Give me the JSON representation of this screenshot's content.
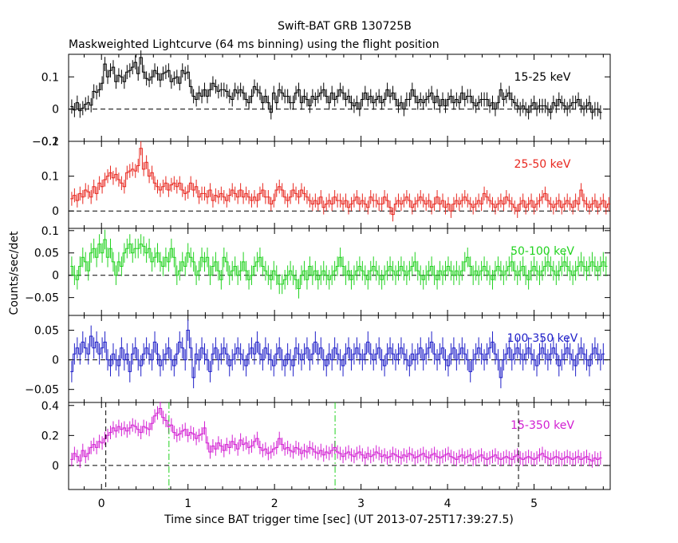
{
  "chart_data": {
    "type": "line",
    "title": "Swift-BAT GRB 130725B",
    "subtitle": "Maskweighted Lightcurve (64 ms binning) using the flight position",
    "xlabel": "Time since BAT trigger time [sec] (UT 2013-07-25T17:39:27.5)",
    "ylabel": "Counts/sec/det",
    "xlim": [
      -0.38,
      5.88
    ],
    "xticks": [
      "0",
      "1",
      "2",
      "3",
      "4",
      "5"
    ],
    "bin_width_sec": 0.064,
    "vertical_markers": [
      {
        "x": 0.05,
        "style": "black-dashed"
      },
      {
        "x": 4.82,
        "style": "black-dashed"
      },
      {
        "x": 0.78,
        "style": "green-dashdot"
      },
      {
        "x": 2.7,
        "style": "green-dashdot"
      }
    ],
    "panels": [
      {
        "name": "15-25 keV",
        "color": "#000000",
        "ylim": [
          -0.1,
          0.17
        ],
        "yticks": [
          "−0.1",
          "0",
          "0.1"
        ],
        "values": [
          0.008,
          -0.003,
          0.02,
          -0.005,
          0.003,
          0.015,
          0.02,
          0.012,
          0.055,
          0.052,
          0.06,
          0.08,
          0.14,
          0.1,
          0.12,
          0.13,
          0.085,
          0.105,
          0.1,
          0.085,
          0.115,
          0.12,
          0.13,
          0.145,
          0.11,
          0.16,
          0.115,
          0.095,
          0.09,
          0.1,
          0.12,
          0.11,
          0.09,
          0.11,
          0.115,
          0.12,
          0.085,
          0.095,
          0.1,
          0.08,
          0.12,
          0.11,
          0.115,
          0.07,
          0.04,
          0.03,
          0.05,
          0.04,
          0.06,
          0.04,
          0.06,
          0.08,
          0.07,
          0.055,
          0.06,
          0.06,
          0.055,
          0.04,
          0.03,
          0.06,
          0.05,
          0.06,
          0.05,
          0.03,
          0.02,
          0.04,
          0.07,
          0.06,
          0.05,
          0.02,
          0.04,
          0.02,
          -0.01,
          0.05,
          0.02,
          0.06,
          0.05,
          0.04,
          0.04,
          0.02,
          0.02,
          0.05,
          0.06,
          0.02,
          0.04,
          0.03,
          0.01,
          0.04,
          0.03,
          0.04,
          0.05,
          0.06,
          0.04,
          0.02,
          0.05,
          0.03,
          0.04,
          0.06,
          0.05,
          0.03,
          0.04,
          0.02,
          0.01,
          0.02,
          0.0,
          0.03,
          0.05,
          0.03,
          0.04,
          0.02,
          0.03,
          0.04,
          0.02,
          0.03,
          0.06,
          0.04,
          0.05,
          0.03,
          0.01,
          0.02,
          0.0,
          0.03,
          0.03,
          0.06,
          0.04,
          0.02,
          0.03,
          0.02,
          0.03,
          0.04,
          0.05,
          0.02,
          0.04,
          0.01,
          0.03,
          0.01,
          0.03,
          0.04,
          0.02,
          0.03,
          0.02,
          0.05,
          0.03,
          0.04,
          0.04,
          0.02,
          0.01,
          0.02,
          0.03,
          0.03,
          0.03,
          0.01,
          0.02,
          0.0,
          0.02,
          0.06,
          0.03,
          0.04,
          0.05,
          0.03,
          0.02,
          0.01,
          0.0,
          0.01,
          0.0,
          -0.01,
          0.01,
          0.02,
          0.0,
          0.01,
          0.01,
          0.01,
          0.0,
          -0.01,
          0.02,
          0.01,
          0.03,
          0.02,
          0.01,
          0.0,
          0.01,
          0.02,
          0.02,
          0.03,
          0.01,
          0.0,
          0.01,
          0.02,
          -0.01,
          0.0,
          0.0,
          -0.01
        ],
        "err": 0.022
      },
      {
        "name": "25-50 keV",
        "color": "#e8271f",
        "ylim": [
          -0.05,
          0.2
        ],
        "yticks": [
          "0",
          "0.1",
          "0.2"
        ],
        "values": [
          0.035,
          0.045,
          0.03,
          0.05,
          0.04,
          0.06,
          0.055,
          0.04,
          0.07,
          0.05,
          0.08,
          0.07,
          0.09,
          0.1,
          0.11,
          0.095,
          0.105,
          0.09,
          0.08,
          0.07,
          0.11,
          0.115,
          0.12,
          0.115,
          0.13,
          0.18,
          0.12,
          0.14,
          0.1,
          0.11,
          0.08,
          0.07,
          0.06,
          0.07,
          0.08,
          0.06,
          0.075,
          0.08,
          0.07,
          0.08,
          0.06,
          0.05,
          0.055,
          0.08,
          0.06,
          0.07,
          0.04,
          0.05,
          0.05,
          0.04,
          0.06,
          0.03,
          0.045,
          0.04,
          0.05,
          0.04,
          0.03,
          0.045,
          0.06,
          0.05,
          0.04,
          0.06,
          0.04,
          0.05,
          0.04,
          0.03,
          0.04,
          0.03,
          0.05,
          0.06,
          0.04,
          0.04,
          0.02,
          0.03,
          0.06,
          0.07,
          0.06,
          0.04,
          0.03,
          0.04,
          0.06,
          0.05,
          0.04,
          0.06,
          0.05,
          0.04,
          0.03,
          0.02,
          0.03,
          0.02,
          0.04,
          0.01,
          0.02,
          0.03,
          0.02,
          0.04,
          0.03,
          0.03,
          0.02,
          0.03,
          0.01,
          0.02,
          0.03,
          0.04,
          0.02,
          0.03,
          0.02,
          0.01,
          0.04,
          0.03,
          0.03,
          0.02,
          0.02,
          0.04,
          0.03,
          0.01,
          -0.01,
          0.02,
          0.03,
          0.02,
          0.03,
          0.04,
          0.03,
          0.01,
          0.02,
          0.03,
          0.04,
          0.03,
          0.02,
          0.03,
          0.01,
          0.02,
          0.04,
          0.02,
          0.03,
          0.01,
          0.02,
          0.0,
          0.02,
          0.03,
          0.02,
          0.03,
          0.04,
          0.03,
          0.02,
          0.01,
          0.02,
          0.03,
          0.02,
          0.05,
          0.04,
          0.03,
          0.02,
          0.01,
          0.02,
          0.03,
          0.02,
          0.04,
          0.03,
          0.02,
          0.01,
          0.0,
          0.02,
          0.03,
          0.01,
          0.02,
          0.03,
          0.01,
          0.02,
          0.03,
          0.04,
          0.05,
          0.03,
          0.02,
          0.01,
          0.02,
          0.03,
          0.01,
          0.02,
          0.03,
          0.02,
          0.01,
          0.03,
          0.02,
          0.06,
          0.03,
          0.02,
          0.01,
          0.02,
          0.03,
          0.01,
          0.02,
          0.03,
          0.01,
          0.02,
          0.03,
          0.01,
          0.02,
          0.03,
          0.01
        ],
        "err": 0.02
      },
      {
        "name": "50-100 keV",
        "color": "#21d21f",
        "ylim": [
          -0.09,
          0.105
        ],
        "yticks": [
          "−0.05",
          "0",
          "0.05",
          "0.1"
        ],
        "values": [
          0.02,
          0.0,
          -0.01,
          0.02,
          0.04,
          0.03,
          0.01,
          0.05,
          0.06,
          0.04,
          0.07,
          0.05,
          0.08,
          0.04,
          0.06,
          0.03,
          0.0,
          0.03,
          0.02,
          0.05,
          0.06,
          0.07,
          0.05,
          0.06,
          0.06,
          0.07,
          0.065,
          0.05,
          0.06,
          0.03,
          0.04,
          0.05,
          0.03,
          0.02,
          0.04,
          0.03,
          0.06,
          0.04,
          0.0,
          0.01,
          0.03,
          0.02,
          0.05,
          0.04,
          0.03,
          0.0,
          0.01,
          0.04,
          0.03,
          0.04,
          0.0,
          0.02,
          0.03,
          0.01,
          -0.01,
          0.04,
          0.03,
          0.0,
          0.01,
          0.02,
          0.0,
          0.01,
          0.03,
          0.01,
          -0.01,
          0.0,
          0.02,
          0.03,
          0.04,
          0.02,
          0.01,
          0.0,
          -0.01,
          0.01,
          0.0,
          -0.02,
          -0.02,
          -0.01,
          0.0,
          0.01,
          0.0,
          -0.01,
          -0.03,
          0.0,
          0.01,
          -0.01,
          0.02,
          0.0,
          0.01,
          -0.01,
          0.0,
          0.01,
          0.0,
          -0.01,
          0.0,
          0.01,
          0.02,
          0.04,
          0.02,
          0.0,
          0.01,
          -0.01,
          0.0,
          0.01,
          0.02,
          0.01,
          0.0,
          -0.01,
          0.01,
          0.02,
          0.01,
          0.0,
          -0.01,
          0.0,
          0.01,
          0.02,
          0.01,
          0.0,
          0.01,
          0.02,
          0.01,
          0.0,
          0.01,
          0.02,
          0.03,
          0.01,
          0.0,
          -0.01,
          0.0,
          0.01,
          0.02,
          0.0,
          -0.01,
          0.01,
          0.0,
          0.01,
          0.02,
          0.01,
          0.0,
          0.01,
          0.0,
          0.01,
          0.03,
          0.04,
          0.02,
          0.0,
          0.01,
          0.0,
          0.01,
          0.02,
          0.01,
          0.0,
          -0.01,
          0.01,
          0.02,
          0.01,
          0.0,
          0.01,
          0.02,
          0.03,
          0.01,
          0.0,
          0.01,
          0.02,
          0.0,
          -0.01,
          0.01,
          0.02,
          0.01,
          0.0,
          0.01,
          0.02,
          0.03,
          0.02,
          0.01,
          0.0,
          0.01,
          0.02,
          0.03,
          0.02,
          0.01,
          0.0,
          0.01,
          0.02,
          0.03,
          0.02,
          0.01,
          0.02,
          0.03,
          0.02,
          0.01,
          0.02,
          0.03,
          0.02
        ],
        "err": 0.022
      },
      {
        "name": "100-350 keV",
        "color": "#1e1ec8",
        "ylim": [
          -0.072,
          0.075
        ],
        "yticks": [
          "−0.05",
          "0",
          "0.05"
        ],
        "values": [
          -0.02,
          0.01,
          0.02,
          0.01,
          0.03,
          0.02,
          0.01,
          0.04,
          0.02,
          0.03,
          0.01,
          0.02,
          0.03,
          0.0,
          -0.01,
          0.01,
          0.0,
          -0.01,
          0.02,
          0.0,
          0.01,
          -0.02,
          0.01,
          0.02,
          0.0,
          -0.01,
          0.01,
          0.02,
          0.01,
          0.0,
          0.03,
          0.01,
          -0.01,
          0.0,
          0.01,
          0.02,
          0.0,
          -0.01,
          0.01,
          0.03,
          0.02,
          0.0,
          0.05,
          0.02,
          -0.03,
          0.01,
          0.0,
          0.02,
          0.01,
          0.0,
          -0.02,
          0.01,
          0.02,
          0.0,
          0.01,
          0.02,
          0.01,
          -0.01,
          0.0,
          0.01,
          0.02,
          0.01,
          0.0,
          -0.01,
          0.01,
          0.02,
          0.01,
          0.03,
          0.01,
          0.0,
          0.02,
          0.01,
          0.0,
          -0.01,
          0.01,
          0.02,
          0.0,
          -0.01,
          0.01,
          0.0,
          -0.01,
          0.02,
          0.01,
          0.0,
          0.01,
          0.02,
          0.0,
          0.01,
          0.03,
          0.01,
          0.02,
          0.0,
          -0.01,
          0.01,
          0.0,
          0.02,
          0.01,
          0.0,
          -0.01,
          0.01,
          0.02,
          0.0,
          0.01,
          0.02,
          0.01,
          0.0,
          0.01,
          0.03,
          0.01,
          0.0,
          0.01,
          0.02,
          0.0,
          -0.01,
          0.01,
          0.02,
          0.01,
          0.0,
          0.01,
          0.02,
          0.01,
          0.0,
          -0.01,
          0.01,
          0.0,
          0.01,
          0.02,
          0.0,
          0.01,
          0.02,
          0.03,
          0.01,
          0.0,
          0.01,
          0.02,
          0.0,
          -0.01,
          0.01,
          0.02,
          0.0,
          0.01,
          0.02,
          0.01,
          0.0,
          -0.02,
          0.0,
          0.01,
          0.02,
          0.01,
          0.0,
          0.01,
          0.02,
          0.03,
          0.01,
          0.0,
          -0.03,
          0.0,
          0.01,
          0.02,
          0.0,
          0.01,
          0.02,
          0.01,
          0.0,
          0.01,
          0.02,
          0.01,
          0.0,
          -0.01,
          0.01,
          0.02,
          0.01,
          0.0,
          0.01,
          0.02,
          0.01,
          -0.01,
          0.0,
          0.01,
          0.02,
          0.01,
          0.0,
          -0.01,
          0.01,
          0.02,
          0.01,
          0.0,
          -0.01,
          0.01,
          0.02,
          0.01,
          0.0,
          0.01
        ],
        "err": 0.018
      },
      {
        "name": "15-350 keV",
        "color": "#d21ed2",
        "ylim": [
          -0.16,
          0.42
        ],
        "yticks": [
          "0",
          "0.2",
          "0.4"
        ],
        "values": [
          0.04,
          0.08,
          0.06,
          0.03,
          0.1,
          0.06,
          0.08,
          0.12,
          0.14,
          0.12,
          0.16,
          0.15,
          0.18,
          0.2,
          0.22,
          0.25,
          0.23,
          0.26,
          0.24,
          0.25,
          0.23,
          0.25,
          0.27,
          0.26,
          0.24,
          0.22,
          0.26,
          0.25,
          0.24,
          0.28,
          0.33,
          0.35,
          0.38,
          0.32,
          0.3,
          0.26,
          0.27,
          0.22,
          0.2,
          0.21,
          0.23,
          0.24,
          0.2,
          0.22,
          0.21,
          0.18,
          0.2,
          0.21,
          0.25,
          0.15,
          0.09,
          0.13,
          0.11,
          0.15,
          0.13,
          0.1,
          0.14,
          0.12,
          0.16,
          0.14,
          0.11,
          0.17,
          0.14,
          0.15,
          0.12,
          0.13,
          0.16,
          0.18,
          0.12,
          0.1,
          0.11,
          0.08,
          0.09,
          0.11,
          0.12,
          0.18,
          0.14,
          0.11,
          0.12,
          0.1,
          0.09,
          0.12,
          0.11,
          0.08,
          0.1,
          0.09,
          0.12,
          0.11,
          0.09,
          0.08,
          0.1,
          0.07,
          0.09,
          0.08,
          0.1,
          0.12,
          0.09,
          0.08,
          0.06,
          0.08,
          0.09,
          0.07,
          0.06,
          0.08,
          0.09,
          0.07,
          0.05,
          0.08,
          0.06,
          0.07,
          0.09,
          0.08,
          0.06,
          0.07,
          0.05,
          0.06,
          0.08,
          0.07,
          0.06,
          0.05,
          0.07,
          0.06,
          0.08,
          0.07,
          0.05,
          0.06,
          0.07,
          0.08,
          0.06,
          0.05,
          0.07,
          0.08,
          0.06,
          0.05,
          0.06,
          0.07,
          0.08,
          0.06,
          0.05,
          0.04,
          0.06,
          0.07,
          0.05,
          0.06,
          0.07,
          0.04,
          0.05,
          0.06,
          0.07,
          0.05,
          0.04,
          0.05,
          0.06,
          0.07,
          0.05,
          0.04,
          0.05,
          0.06,
          0.05,
          0.04,
          0.06,
          0.07,
          0.05,
          0.04,
          0.05,
          0.06,
          0.05,
          0.04,
          0.05,
          0.07,
          0.08,
          0.06,
          0.05,
          0.04,
          0.05,
          0.06,
          0.05,
          0.04,
          0.05,
          0.06,
          0.05,
          0.04,
          0.05,
          0.06,
          0.04,
          0.05,
          0.06,
          0.04,
          0.03,
          0.05,
          0.04,
          0.05
        ],
        "err": 0.045
      }
    ]
  }
}
